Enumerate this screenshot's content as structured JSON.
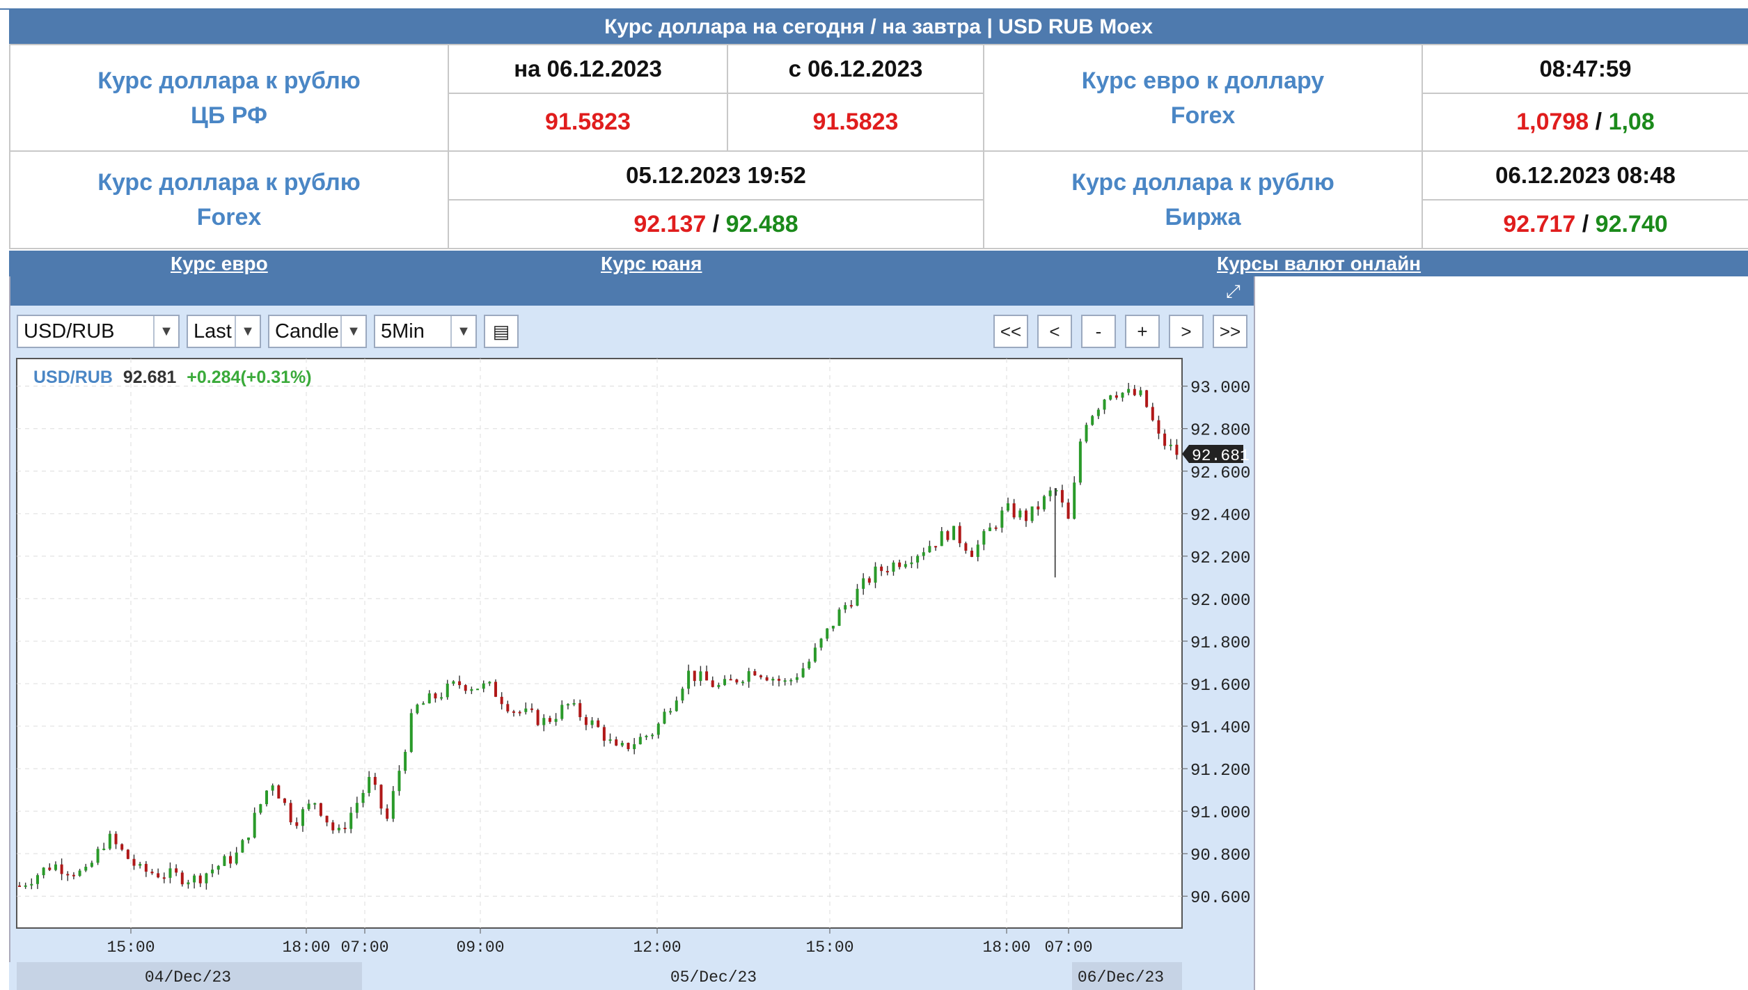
{
  "title": "Курс доллара на сегодня / на завтра | USD RUB Moex",
  "rates": {
    "cb": {
      "label1": "Курс доллара к рублю",
      "label2": "ЦБ РФ",
      "date_on": "на 06.12.2023",
      "date_from": "с 06.12.2023",
      "value_on": "91.5823",
      "value_from": "91.5823"
    },
    "eurusd": {
      "label1": "Курс евро к доллару",
      "label2": "Forex",
      "time": "08:47:59",
      "bid": "1,0798",
      "ask": "1,08",
      "sep": "/"
    },
    "forex": {
      "label1": "Курс доллара к рублю",
      "label2": "Forex",
      "datetime": "05.12.2023 19:52",
      "bid": "92.137",
      "ask": "92.488",
      "sep": "/"
    },
    "exchange": {
      "label1": "Курс доллара к рублю",
      "label2": "Биржа",
      "datetime": "06.12.2023 08:48",
      "bid": "92.717",
      "ask": "92.740",
      "sep": "/"
    }
  },
  "links": [
    "Курс евро",
    "Курс юаня",
    "Курсы валют онлайн"
  ],
  "controls": {
    "symbol": "USD/RUB",
    "price": "Last",
    "chart_type": "Candle",
    "interval": "5Min",
    "nav": [
      "<<",
      "<",
      "-",
      "+",
      ">",
      ">>"
    ]
  },
  "icons": {
    "expand": "expand-icon",
    "table": "table-icon",
    "dropdown": "chevron-down-icon"
  },
  "chart_data": {
    "type": "candlestick",
    "symbol": "USD/RUB",
    "last": "92.681",
    "change": "+0.284(+0.31%)",
    "ylim": [
      90.45,
      93.13
    ],
    "yticks": [
      "93.000",
      "92.800",
      "92.600",
      "92.400",
      "92.200",
      "92.000",
      "91.800",
      "91.600",
      "91.400",
      "91.200",
      "91.000",
      "90.800",
      "90.600"
    ],
    "xticks": [
      "15:00",
      "18:00",
      "07:00",
      "09:00",
      "12:00",
      "15:00",
      "18:00",
      "07:00"
    ],
    "date_labels": [
      "04/Dec/23",
      "05/Dec/23",
      "06/Dec/23"
    ],
    "colors": {
      "up": "#2a9a2a",
      "down": "#b01818",
      "label_symbol": "#4a86c5",
      "label_change": "#3aaa3a"
    },
    "anchors": [
      [
        0,
        90.65
      ],
      [
        30,
        90.75
      ],
      [
        60,
        90.7
      ],
      [
        80,
        90.88
      ],
      [
        110,
        90.72
      ],
      [
        160,
        90.68
      ],
      [
        200,
        90.8
      ],
      [
        230,
        91.15
      ],
      [
        250,
        90.95
      ],
      [
        270,
        91.05
      ],
      [
        290,
        90.88
      ],
      [
        320,
        91.15
      ],
      [
        335,
        90.95
      ],
      [
        360,
        91.48
      ],
      [
        400,
        91.6
      ],
      [
        430,
        91.58
      ],
      [
        450,
        91.48
      ],
      [
        480,
        91.42
      ],
      [
        500,
        91.5
      ],
      [
        530,
        91.38
      ],
      [
        545,
        91.28
      ],
      [
        580,
        91.38
      ],
      [
        610,
        91.65
      ],
      [
        640,
        91.58
      ],
      [
        670,
        91.67
      ],
      [
        700,
        91.6
      ],
      [
        720,
        91.7
      ],
      [
        750,
        91.95
      ],
      [
        780,
        92.12
      ],
      [
        820,
        92.22
      ],
      [
        850,
        92.32
      ],
      [
        870,
        92.22
      ],
      [
        900,
        92.42
      ],
      [
        920,
        92.38
      ],
      [
        945,
        92.52
      ],
      [
        958,
        92.35
      ],
      [
        970,
        92.82
      ],
      [
        995,
        92.98
      ],
      [
        1025,
        92.95
      ],
      [
        1040,
        92.75
      ],
      [
        1057,
        92.68
      ]
    ]
  }
}
